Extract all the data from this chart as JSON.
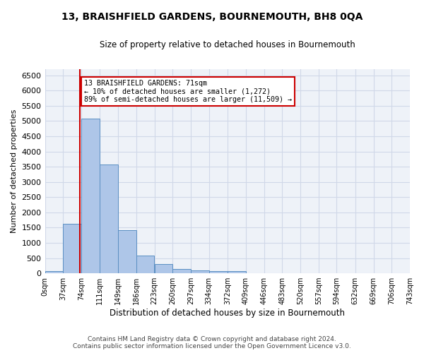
{
  "title": "13, BRAISHFIELD GARDENS, BOURNEMOUTH, BH8 0QA",
  "subtitle": "Size of property relative to detached houses in Bournemouth",
  "xlabel": "Distribution of detached houses by size in Bournemouth",
  "ylabel": "Number of detached properties",
  "bar_values": [
    75,
    1630,
    5080,
    3580,
    1410,
    590,
    295,
    140,
    95,
    65,
    60,
    0,
    0,
    0,
    0,
    0,
    0,
    0,
    0,
    0
  ],
  "bar_edges": [
    0,
    37,
    74,
    111,
    149,
    186,
    223,
    260,
    297,
    334,
    372,
    409,
    446,
    483,
    520,
    557,
    594,
    632,
    669,
    706,
    743
  ],
  "tick_labels": [
    "0sqm",
    "37sqm",
    "74sqm",
    "111sqm",
    "149sqm",
    "186sqm",
    "223sqm",
    "260sqm",
    "297sqm",
    "334sqm",
    "372sqm",
    "409sqm",
    "446sqm",
    "483sqm",
    "520sqm",
    "557sqm",
    "594sqm",
    "632sqm",
    "669sqm",
    "706sqm",
    "743sqm"
  ],
  "property_size": 71,
  "bar_color": "#aec6e8",
  "bar_edge_color": "#5a8fc2",
  "vline_color": "#cc0000",
  "vline_x": 71,
  "annotation_text": "13 BRAISHFIELD GARDENS: 71sqm\n← 10% of detached houses are smaller (1,272)\n89% of semi-detached houses are larger (11,509) →",
  "annotation_box_color": "#ffffff",
  "annotation_box_edge": "#cc0000",
  "grid_color": "#d0d8e8",
  "background_color": "#eef2f8",
  "footer_line1": "Contains HM Land Registry data © Crown copyright and database right 2024.",
  "footer_line2": "Contains public sector information licensed under the Open Government Licence v3.0.",
  "ylim": [
    0,
    6700
  ],
  "xlim": [
    0,
    743
  ],
  "yticks": [
    0,
    500,
    1000,
    1500,
    2000,
    2500,
    3000,
    3500,
    4000,
    4500,
    5000,
    5500,
    6000,
    6500
  ]
}
